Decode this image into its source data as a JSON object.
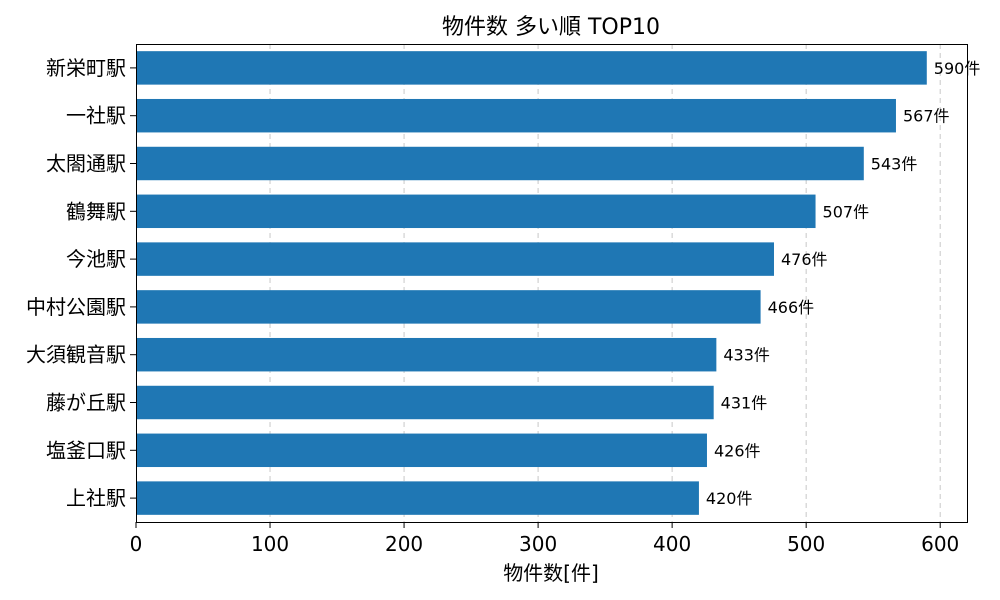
{
  "chart_data": {
    "type": "bar",
    "orientation": "horizontal",
    "title": "物件数 多い順 TOP10",
    "xlabel": "物件数[件]",
    "ylabel": "",
    "xlim": [
      0,
      620
    ],
    "xticks": [
      0,
      100,
      200,
      300,
      400,
      500,
      600
    ],
    "grid": "x-dashed",
    "color": "#1f77b4",
    "value_suffix": "件",
    "categories": [
      "新栄町駅",
      "一社駅",
      "太閤通駅",
      "鶴舞駅",
      "今池駅",
      "中村公園駅",
      "大須観音駅",
      "藤が丘駅",
      "塩釜口駅",
      "上社駅"
    ],
    "values": [
      590,
      567,
      543,
      507,
      476,
      466,
      433,
      431,
      426,
      420
    ]
  }
}
